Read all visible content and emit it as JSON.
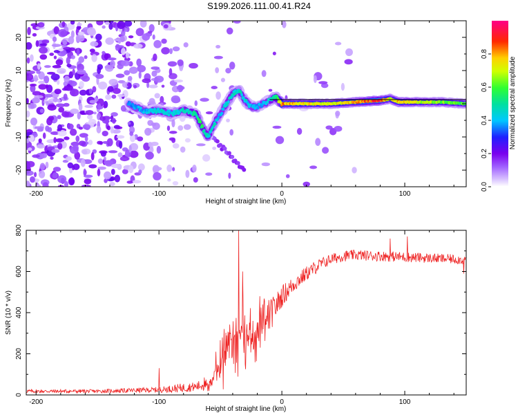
{
  "title": "S199.2026.111.00.41.R24",
  "colors": {
    "series": "#ee2222",
    "axis": "#000000",
    "track": "#000000"
  },
  "chart_data": [
    {
      "type": "heatmap",
      "xlabel": "Height of straight line (km)",
      "ylabel": "Frequency (Hz)",
      "xlim": [
        -208,
        150
      ],
      "ylim": [
        -25,
        25
      ],
      "xticks": [
        -200,
        -100,
        0,
        100
      ],
      "yticks": [
        -20,
        -10,
        0,
        10,
        20
      ],
      "colorbar": {
        "label": "Normalized spectral amplitude",
        "range": [
          0,
          1
        ],
        "ticks": [
          "0.0",
          "0.2",
          "0.4",
          "0.6",
          "0.8"
        ],
        "colormap": "rainbow (white-violet-blue-cyan-green-yellow-red-magenta)"
      },
      "ridge": {
        "description": "frequency of maximum amplitude vs height",
        "x": [
          -125,
          -110,
          -100,
          -90,
          -80,
          -70,
          -65,
          -60,
          -55,
          -50,
          -45,
          -40,
          -35,
          -30,
          -25,
          -20,
          -15,
          -10,
          -5,
          0,
          20,
          40,
          60,
          80,
          88,
          95,
          110,
          130,
          150
        ],
        "y": [
          0,
          -2.5,
          -2,
          -3,
          -2,
          -3,
          -7,
          -10,
          -6,
          -3,
          0,
          3,
          4,
          1,
          -1,
          -1,
          0,
          1,
          2,
          0,
          0,
          0,
          0.5,
          1,
          1.5,
          0.5,
          0.5,
          0.5,
          0
        ],
        "amplitude": [
          0.35,
          0.4,
          0.45,
          0.4,
          0.45,
          0.5,
          0.55,
          0.45,
          0.45,
          0.4,
          0.45,
          0.45,
          0.45,
          0.45,
          0.4,
          0.4,
          0.4,
          0.45,
          0.5,
          0.8,
          0.75,
          0.7,
          0.8,
          0.9,
          0.7,
          0.8,
          0.7,
          0.65,
          0.6
        ]
      },
      "track_line": {
        "x": [
          -10,
          150
        ],
        "y": [
          0,
          0
        ]
      }
    },
    {
      "type": "line",
      "xlabel": "Height of straight line (km)",
      "ylabel": "SNR (10 * v/v)",
      "xlim": [
        -208,
        150
      ],
      "ylim": [
        0,
        800
      ],
      "xticks": [
        -200,
        -100,
        0,
        100
      ],
      "yticks": [
        0,
        200,
        400,
        600,
        800
      ],
      "series": [
        {
          "name": "SNR",
          "description": "noisy trace, 1 km sampling; envelope values",
          "x": [
            -208,
            -150,
            -100,
            -90,
            -80,
            -70,
            -60,
            -55,
            -50,
            -45,
            -40,
            -35,
            -30,
            -25,
            -20,
            -15,
            -10,
            -5,
            0,
            10,
            20,
            30,
            40,
            50,
            60,
            80,
            100,
            120,
            140,
            150
          ],
          "mean": [
            18,
            18,
            25,
            30,
            35,
            40,
            55,
            90,
            160,
            240,
            280,
            300,
            300,
            290,
            300,
            330,
            380,
            430,
            480,
            540,
            590,
            630,
            660,
            675,
            680,
            675,
            670,
            665,
            660,
            655
          ],
          "noise": [
            10,
            10,
            15,
            20,
            25,
            25,
            40,
            80,
            120,
            160,
            180,
            170,
            150,
            130,
            120,
            110,
            90,
            70,
            60,
            45,
            40,
            35,
            30,
            30,
            28,
            28,
            28,
            26,
            26,
            26
          ],
          "spikes": [
            {
              "x": -35,
              "y": 800
            },
            {
              "x": -32,
              "y": 600
            },
            {
              "x": -18,
              "y": 480
            },
            {
              "x": -100,
              "y": 130
            },
            {
              "x": 88,
              "y": 760
            },
            {
              "x": 102,
              "y": 770
            },
            {
              "x": 148,
              "y": 590
            }
          ]
        }
      ]
    }
  ]
}
